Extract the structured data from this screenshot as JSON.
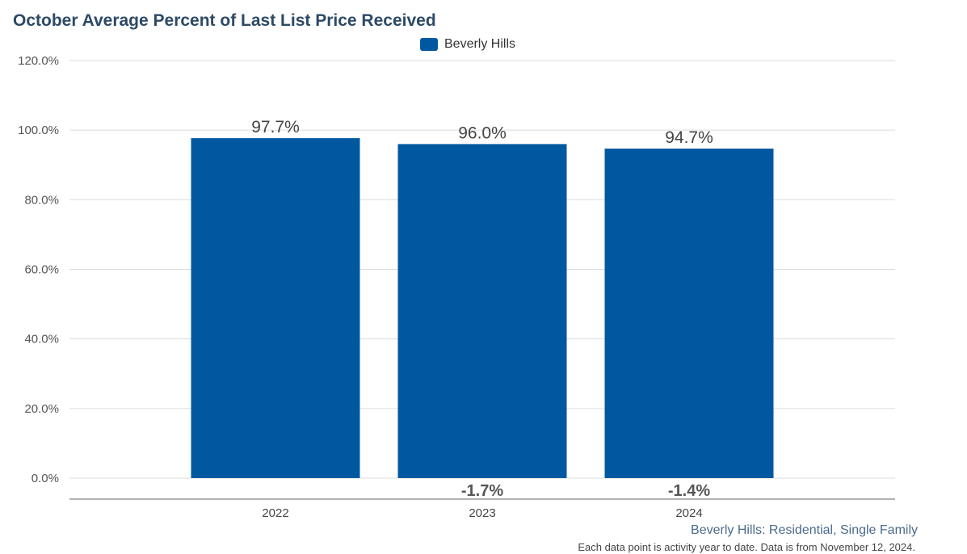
{
  "chart_data": {
    "type": "bar",
    "title": "October Average Percent of Last List Price Received",
    "categories": [
      "2022",
      "2023",
      "2024"
    ],
    "series": [
      {
        "name": "Beverly Hills",
        "values": [
          97.7,
          96.0,
          94.7
        ],
        "color": "#0059a0"
      }
    ],
    "value_labels": [
      "97.7%",
      "96.0%",
      "94.7%"
    ],
    "change_labels": [
      "",
      "-1.7%",
      "-1.4%"
    ],
    "yticks": [
      "0.0%",
      "20.0%",
      "40.0%",
      "60.0%",
      "80.0%",
      "100.0%",
      "120.0%"
    ],
    "ylim": [
      0,
      120
    ],
    "grid": true,
    "legend_position": "top-center",
    "xlabel": "",
    "ylabel": ""
  },
  "footer": {
    "subtitle": "Beverly Hills: Residential, Single Family",
    "note": "Each data point is activity year to date. Data is from November 12, 2024."
  }
}
